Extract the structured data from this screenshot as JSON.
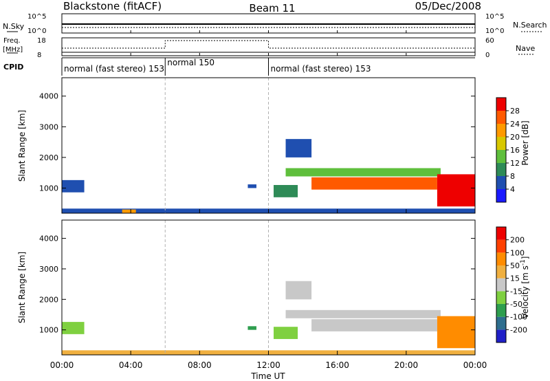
{
  "header": {
    "station": "Blackstone (fitACF)",
    "beam": "Beam 11",
    "date": "05/Dec/2008"
  },
  "noise_panel": {
    "left_label": "N.Sky",
    "right_label": "N.Search",
    "left_ticks": [
      "10^5",
      "10^0"
    ],
    "right_ticks": [
      "10^5",
      "10^0"
    ]
  },
  "freq_panel": {
    "left_label_1": "Freq.",
    "left_label_2": "[MHz]",
    "right_label": "Nave",
    "left_ticks": [
      "18",
      "8"
    ],
    "right_ticks": [
      "60",
      "0"
    ]
  },
  "cpid": {
    "label": "CPID",
    "segments": [
      {
        "start_hour": 0,
        "end_hour": 6,
        "text": "normal (fast stereo) 153"
      },
      {
        "start_hour": 6,
        "end_hour": 12,
        "text": "normal 150"
      },
      {
        "start_hour": 12,
        "end_hour": 24,
        "text": "normal (fast stereo) 153"
      }
    ]
  },
  "x_axis": {
    "label": "Time UT",
    "ticks": [
      "00:00",
      "04:00",
      "08:00",
      "12:00",
      "16:00",
      "20:00",
      "00:00"
    ],
    "tick_hours": [
      0,
      4,
      8,
      12,
      16,
      20,
      24
    ]
  },
  "power_panel": {
    "ylabel": "Slant Range [km]",
    "yticks": [
      "1000",
      "2000",
      "3000",
      "4000"
    ],
    "colorbar_label": "Power [dB]",
    "colorbar_ticks": [
      "4",
      "8",
      "12",
      "16",
      "20",
      "24",
      "28"
    ],
    "colors": [
      "#1a1aff",
      "#1f4fb0",
      "#2e8b57",
      "#5fbf3c",
      "#d8c800",
      "#ff9a00",
      "#ff5a00",
      "#ee0000"
    ]
  },
  "velocity_panel": {
    "ylabel": "Slant Range [km]",
    "yticks": [
      "1000",
      "2000",
      "3000",
      "4000"
    ],
    "colorbar_label": "Velocity [m s",
    "colorbar_unit_sup": "-1",
    "colorbar_unit_close": "]",
    "colorbar_ticks": [
      "200",
      "100",
      "50",
      "15",
      "-15",
      "-50",
      "-100",
      "-200"
    ],
    "colors": [
      "#2020c8",
      "#2e6e8e",
      "#2e9e4e",
      "#7fd040",
      "#c8c8c8",
      "#f0b040",
      "#ff8c00",
      "#ff4000",
      "#ee0000"
    ]
  },
  "chart_data": {
    "type": "heatmap",
    "x_unit": "hours UT",
    "xlim": [
      0,
      24
    ],
    "ylim": [
      180,
      4600
    ],
    "echo_regions": [
      {
        "t0": 0.0,
        "t1": 1.3,
        "r0": 860,
        "r1": 1260,
        "power_level": 1,
        "velocity_level": 3
      },
      {
        "t0": 0.0,
        "t1": 24.0,
        "r0": 180,
        "r1": 330,
        "power_level": 1,
        "velocity_level": 5
      },
      {
        "t0": 3.5,
        "t1": 4.3,
        "r0": 180,
        "r1": 300,
        "power_level": 5,
        "velocity_level": 5
      },
      {
        "t0": 10.8,
        "t1": 11.3,
        "r0": 1000,
        "r1": 1120,
        "power_level": 1,
        "velocity_level": 2
      },
      {
        "t0": 12.3,
        "t1": 13.7,
        "r0": 700,
        "r1": 1100,
        "power_level": 2,
        "velocity_level": 3
      },
      {
        "t0": 13.0,
        "t1": 22.0,
        "r0": 1380,
        "r1": 1650,
        "power_level": 3,
        "velocity_level": 4
      },
      {
        "t0": 14.5,
        "t1": 21.8,
        "r0": 950,
        "r1": 1350,
        "power_level": 6,
        "velocity_level": 4
      },
      {
        "t0": 21.8,
        "t1": 24.0,
        "r0": 400,
        "r1": 1450,
        "power_level": 7,
        "velocity_level": 6
      },
      {
        "t0": 13.0,
        "t1": 14.5,
        "r0": 2000,
        "r1": 2600,
        "power_level": 1,
        "velocity_level": 4
      }
    ]
  }
}
